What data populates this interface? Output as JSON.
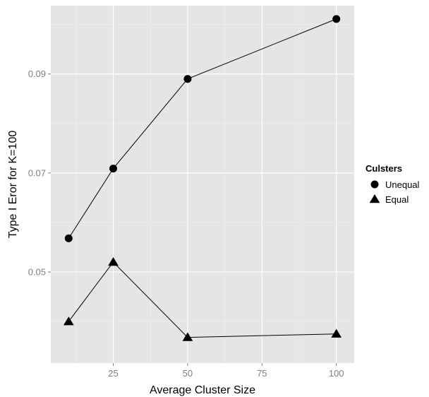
{
  "chart_data": {
    "type": "line",
    "xlabel": "Average Cluster Size",
    "ylabel": "Type I Eror for K=100",
    "xlim": [
      4,
      106
    ],
    "ylim": [
      0.0316,
      0.1038
    ],
    "xticks": [
      25,
      50,
      75,
      100
    ],
    "xtick_labels": [
      "25",
      "50",
      "75",
      "100"
    ],
    "xminor": [
      12.5,
      37.5,
      62.5,
      87.5
    ],
    "yticks": [
      0.05,
      0.07,
      0.09
    ],
    "ytick_labels": [
      "0.05",
      "0.07",
      "0.09"
    ],
    "yminor": [
      0.04,
      0.06,
      0.08,
      0.1
    ],
    "grid": true,
    "legend": {
      "title": "Culsters",
      "position": "right"
    },
    "series": [
      {
        "name": "Unequal",
        "marker": "circle",
        "x": [
          10,
          25,
          50,
          100
        ],
        "y": [
          0.0568,
          0.0709,
          0.089,
          0.1011
        ]
      },
      {
        "name": "Equal",
        "marker": "triangle",
        "x": [
          10,
          25,
          50,
          100
        ],
        "y": [
          0.04,
          0.052,
          0.0368,
          0.0375
        ]
      }
    ],
    "colors": {
      "panel": "#e5e5e5",
      "grid_major": "#ffffff",
      "grid_minor": "#f2f2f2",
      "series": "#000000",
      "tick_text": "#7f7f7f"
    }
  }
}
